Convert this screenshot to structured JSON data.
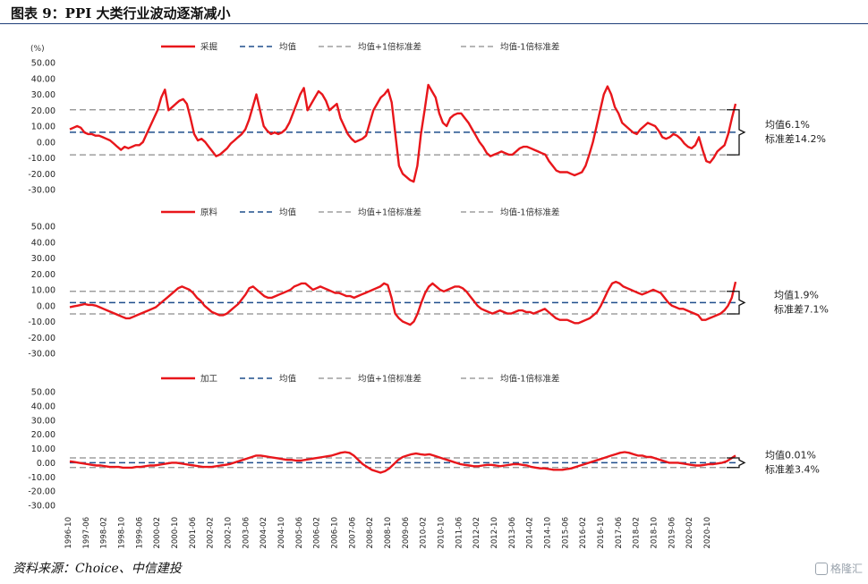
{
  "title": "图表 9：PPI 大类行业波动逐渐减小",
  "source": "资料来源：Choice、中信建投",
  "logo_text": "格隆汇",
  "colors": {
    "series": "#e8161b",
    "mean": "#1f4e8c",
    "band": "#8c8c8c",
    "title_rule": "#1f3f7a"
  },
  "chart_data": [
    {
      "type": "line",
      "ylabel": "(%)",
      "ylim": [
        -30,
        50
      ],
      "yticks": [
        "50.00",
        "40.00",
        "30.00",
        "20.00",
        "10.00",
        "0.00",
        "-10.00",
        "-20.00",
        "-30.00"
      ],
      "legend": [
        "采掘",
        "均值",
        "均值+1倍标准差",
        "均值-1倍标准差"
      ],
      "mean": 6.1,
      "upper": 20.3,
      "lower": -8.1,
      "annotation": [
        "均值6.1%",
        "标准差14.2%"
      ],
      "series": [
        {
          "name": "采掘",
          "values": [
            8,
            9,
            10,
            9,
            6,
            5,
            5,
            4,
            4,
            3,
            2,
            1,
            -1,
            -3,
            -5,
            -3,
            -4,
            -3,
            -2,
            -2,
            0,
            5,
            10,
            15,
            20,
            28,
            33,
            20,
            22,
            24,
            26,
            27,
            24,
            15,
            5,
            1,
            2,
            0,
            -3,
            -6,
            -9,
            -8,
            -6,
            -4,
            -1,
            1,
            3,
            5,
            8,
            14,
            22,
            30,
            20,
            10,
            7,
            5,
            6,
            5,
            6,
            8,
            12,
            18,
            24,
            30,
            34,
            20,
            24,
            28,
            32,
            30,
            26,
            20,
            22,
            24,
            15,
            10,
            5,
            2,
            0,
            1,
            2,
            4,
            12,
            20,
            24,
            28,
            30,
            33,
            25,
            5,
            -15,
            -20,
            -22,
            -24,
            -25,
            -15,
            5,
            20,
            36,
            32,
            28,
            18,
            12,
            10,
            15,
            17,
            18,
            18,
            15,
            12,
            8,
            4,
            0,
            -3,
            -7,
            -9,
            -8,
            -7,
            -6,
            -7,
            -8,
            -8,
            -6,
            -4,
            -3,
            -3,
            -4,
            -5,
            -6,
            -7,
            -8,
            -12,
            -15,
            -18,
            -19,
            -19,
            -19,
            -20,
            -21,
            -20,
            -19,
            -15,
            -8,
            0,
            10,
            20,
            30,
            35,
            30,
            22,
            18,
            12,
            10,
            8,
            6,
            5,
            8,
            10,
            12,
            11,
            10,
            7,
            3,
            2,
            3,
            5,
            4,
            2,
            -1,
            -3,
            -4,
            -2,
            3,
            -5,
            -12,
            -13,
            -10,
            -6,
            -4,
            -2,
            5,
            15,
            24
          ]
        }
      ]
    },
    {
      "type": "line",
      "ylim": [
        -30,
        50
      ],
      "yticks": [
        "50.00",
        "40.00",
        "30.00",
        "20.00",
        "10.00",
        "0.00",
        "-10.00",
        "-20.00",
        "-30.00"
      ],
      "legend": [
        "原料",
        "均值",
        "均值+1倍标准差",
        "均值-1倍标准差"
      ],
      "mean": 1.9,
      "upper": 9.0,
      "lower": -5.2,
      "annotation": [
        "均值1.9%",
        "标准差7.1%"
      ],
      "series": [
        {
          "name": "原料",
          "values": [
            -1,
            -0.5,
            0,
            0.5,
            1,
            0.5,
            0.5,
            0,
            -1,
            -2,
            -3,
            -4,
            -5,
            -6,
            -7,
            -8,
            -8,
            -7,
            -6,
            -5,
            -4,
            -3,
            -2,
            -1,
            1,
            3,
            5,
            7,
            9,
            11,
            12,
            11,
            10,
            8,
            5,
            3,
            0,
            -2,
            -4,
            -5,
            -6,
            -6,
            -5,
            -3,
            -1,
            1,
            4,
            7,
            11,
            12,
            10,
            8,
            6,
            5,
            5,
            6,
            7,
            8,
            9,
            10,
            12,
            13,
            14,
            14,
            12,
            10,
            11,
            12,
            11,
            10,
            9,
            8,
            8,
            7,
            6,
            6,
            5,
            6,
            7,
            8,
            9,
            10,
            11,
            12,
            14,
            13,
            5,
            -5,
            -8,
            -10,
            -11,
            -12,
            -10,
            -5,
            2,
            8,
            12,
            14,
            12,
            10,
            9,
            10,
            11,
            12,
            12,
            11,
            9,
            6,
            3,
            0,
            -2,
            -3,
            -4,
            -5,
            -4,
            -3,
            -4,
            -5,
            -5,
            -4,
            -3,
            -3,
            -4,
            -4,
            -5,
            -4,
            -3,
            -2,
            -4,
            -6,
            -8,
            -9,
            -9,
            -9,
            -10,
            -11,
            -11,
            -10,
            -9,
            -8,
            -6,
            -4,
            0,
            5,
            10,
            14,
            15,
            14,
            12,
            11,
            10,
            9,
            8,
            7,
            8,
            9,
            10,
            9,
            8,
            5,
            2,
            0,
            -1,
            -2,
            -2,
            -3,
            -4,
            -5,
            -6,
            -9,
            -9,
            -8,
            -7,
            -6,
            -5,
            -3,
            0,
            5,
            15
          ]
        }
      ]
    },
    {
      "type": "line",
      "ylim": [
        -30,
        50
      ],
      "yticks": [
        "50.00",
        "40.00",
        "30.00",
        "20.00",
        "10.00",
        "0.00",
        "-10.00",
        "-20.00",
        "-30.00"
      ],
      "legend": [
        "加工",
        "均值",
        "均值+1倍标准差",
        "均值-1倍标准差"
      ],
      "mean": 0.01,
      "upper": 3.4,
      "lower": -3.4,
      "annotation": [
        "均值0.01%",
        "标准差3.4%"
      ],
      "x_labels": [
        "1996-10",
        "1997-06",
        "1998-02",
        "1998-10",
        "1999-06",
        "2000-02",
        "2000-10",
        "2001-06",
        "2002-02",
        "2002-10",
        "2003-06",
        "2004-02",
        "2004-10",
        "2005-06",
        "2006-02",
        "2006-10",
        "2007-06",
        "2008-02",
        "2008-10",
        "2009-06",
        "2010-02",
        "2010-10",
        "2011-06",
        "2012-02",
        "2012-10",
        "2013-06",
        "2014-02",
        "2014-10",
        "2015-06",
        "2016-02",
        "2016-10",
        "2017-06",
        "2018-02",
        "2018-10",
        "2019-06",
        "2020-02",
        "2020-10"
      ],
      "series": [
        {
          "name": "加工",
          "values": [
            1,
            0.5,
            0,
            -0.5,
            -1,
            -1.5,
            -2,
            -2,
            -2.5,
            -3,
            -3,
            -3,
            -3.5,
            -3.5,
            -3.5,
            -3,
            -3,
            -2.5,
            -2,
            -2,
            -1.5,
            -1,
            -0.5,
            0,
            0,
            -0.5,
            -1,
            -1.5,
            -2,
            -2.5,
            -3,
            -3,
            -3,
            -2.5,
            -2,
            -1.5,
            -1,
            0,
            1,
            2,
            3,
            4,
            5,
            5,
            4.5,
            4,
            3.5,
            3,
            2.5,
            2,
            2,
            1.5,
            1.5,
            2,
            2.5,
            3,
            3.5,
            4,
            4.5,
            5,
            6,
            7,
            7.5,
            7,
            5,
            2,
            -1,
            -3,
            -5,
            -6,
            -7,
            -6,
            -4,
            -1,
            2,
            4,
            5,
            6,
            6.5,
            6,
            5.5,
            6,
            5,
            4,
            3,
            2,
            1,
            0,
            -1,
            -1.5,
            -2,
            -2.5,
            -2.5,
            -2,
            -1.5,
            -1.5,
            -2,
            -2.5,
            -2,
            -1.5,
            -1,
            -1,
            -1.5,
            -2,
            -3,
            -3.5,
            -4,
            -4,
            -4.5,
            -5,
            -5,
            -5,
            -4.5,
            -4,
            -3,
            -2,
            -1,
            0,
            1,
            2,
            3,
            4,
            5,
            6,
            7,
            7.5,
            7,
            6,
            5,
            5,
            4,
            4,
            3,
            2,
            1,
            0,
            0,
            0,
            -0.5,
            -1,
            -1.5,
            -2,
            -2,
            -1.5,
            -1,
            -1,
            -0.5,
            0,
            1,
            3,
            5
          ]
        }
      ]
    }
  ]
}
